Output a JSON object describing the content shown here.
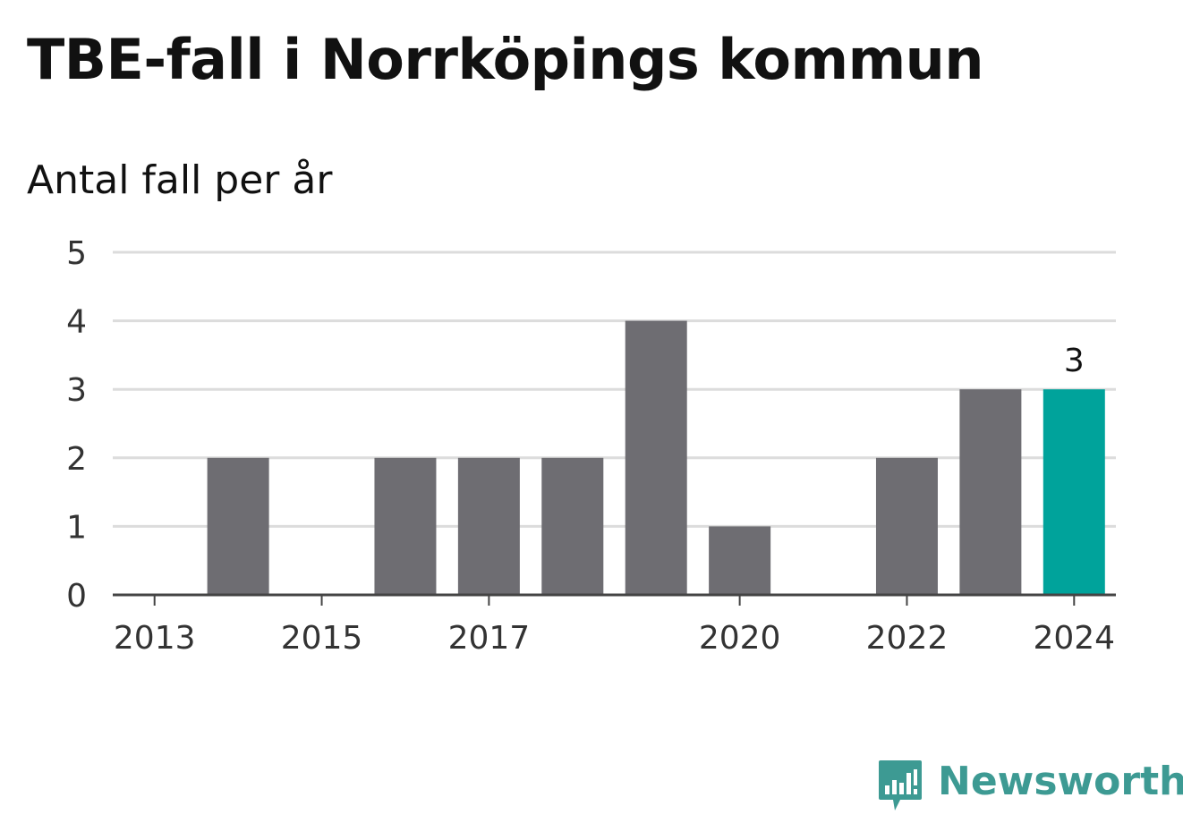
{
  "title": "TBE-fall i Norrköpings kommun",
  "subtitle": "Antal fall per år",
  "brand": {
    "name": "Newsworthy",
    "icon": "newsworthy-logo-icon"
  },
  "colors": {
    "bar": "#6e6d72",
    "highlight": "#00a39b",
    "grid": "#dcdcdc",
    "axis": "#444444",
    "text": "#333333",
    "brand": "#3d9a93"
  },
  "chart_data": {
    "type": "bar",
    "title": "TBE-fall i Norrköpings kommun",
    "subtitle": "Antal fall per år",
    "xlabel": "",
    "ylabel": "",
    "categories": [
      "2013",
      "2014",
      "2015",
      "2016",
      "2017",
      "2018",
      "2019",
      "2020",
      "2021",
      "2022",
      "2023",
      "2024"
    ],
    "values": [
      0,
      2,
      0,
      2,
      2,
      2,
      4,
      1,
      0,
      2,
      3,
      3
    ],
    "x_tick_labels": [
      "2013",
      "2015",
      "2017",
      "2020",
      "2022",
      "2024"
    ],
    "y_ticks": [
      0,
      1,
      2,
      3,
      4,
      5
    ],
    "ylim": [
      0,
      5
    ],
    "grid": true,
    "highlight_category": "2024",
    "data_labels": [
      {
        "category": "2024",
        "text": "3"
      }
    ]
  }
}
